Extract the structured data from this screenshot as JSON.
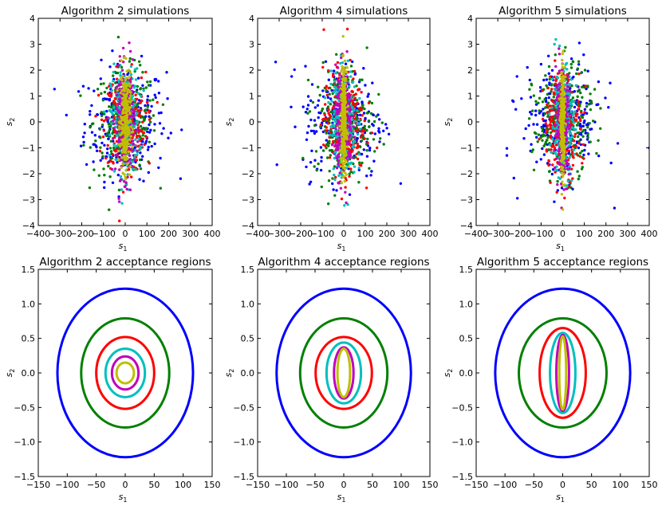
{
  "chart_data": [
    {
      "type": "scatter",
      "title": "Algorithm 2 simulations",
      "xlabel": "s",
      "xlabel_sub": "1",
      "ylabel": "s",
      "ylabel_sub": "2",
      "xlim": [
        -400,
        400
      ],
      "ylim": [
        -4,
        4
      ],
      "xticks": [
        "−400",
        "−300",
        "−200",
        "−100",
        "0",
        "100",
        "200",
        "300",
        "400"
      ],
      "yticks": [
        "−4",
        "−3",
        "−2",
        "−1",
        "0",
        "1",
        "2",
        "3",
        "4"
      ],
      "grid": false,
      "series": [
        {
          "color": "#0000ff",
          "sd_x": 110,
          "sd_y": 1.1
        },
        {
          "color": "#008000",
          "sd_x": 85,
          "sd_y": 1.0
        },
        {
          "color": "#ff0000",
          "sd_x": 55,
          "sd_y": 0.95
        },
        {
          "color": "#00bfbf",
          "sd_x": 38,
          "sd_y": 1.0
        },
        {
          "color": "#bf00bf",
          "sd_x": 25,
          "sd_y": 1.05
        },
        {
          "color": "#bfbf00",
          "sd_x": 14,
          "sd_y": 0.95
        }
      ]
    },
    {
      "type": "scatter",
      "title": "Algorithm 4 simulations",
      "xlabel": "s",
      "xlabel_sub": "1",
      "ylabel": "s",
      "ylabel_sub": "2",
      "xlim": [
        -400,
        400
      ],
      "ylim": [
        -4,
        4
      ],
      "xticks": [
        "−400",
        "−300",
        "−200",
        "−100",
        "0",
        "100",
        "200",
        "300",
        "400"
      ],
      "yticks": [
        "−4",
        "−3",
        "−2",
        "−1",
        "0",
        "1",
        "2",
        "3",
        "4"
      ],
      "grid": false,
      "series": [
        {
          "color": "#0000ff",
          "sd_x": 110,
          "sd_y": 1.1
        },
        {
          "color": "#008000",
          "sd_x": 80,
          "sd_y": 1.05
        },
        {
          "color": "#ff0000",
          "sd_x": 55,
          "sd_y": 1.0
        },
        {
          "color": "#00bfbf",
          "sd_x": 35,
          "sd_y": 1.05
        },
        {
          "color": "#bf00bf",
          "sd_x": 22,
          "sd_y": 1.0
        },
        {
          "color": "#bfbf00",
          "sd_x": 8,
          "sd_y": 1.0
        }
      ]
    },
    {
      "type": "scatter",
      "title": "Algorithm 5 simulations",
      "xlabel": "s",
      "xlabel_sub": "1",
      "ylabel": "s",
      "ylabel_sub": "2",
      "xlim": [
        -400,
        400
      ],
      "ylim": [
        -4,
        4
      ],
      "xticks": [
        "−400",
        "−300",
        "−200",
        "−100",
        "0",
        "100",
        "200",
        "300",
        "400"
      ],
      "yticks": [
        "−4",
        "−3",
        "−2",
        "−1",
        "0",
        "1",
        "2",
        "3",
        "4"
      ],
      "grid": false,
      "series": [
        {
          "color": "#0000ff",
          "sd_x": 110,
          "sd_y": 1.1
        },
        {
          "color": "#008000",
          "sd_x": 80,
          "sd_y": 1.05
        },
        {
          "color": "#ff0000",
          "sd_x": 50,
          "sd_y": 1.0
        },
        {
          "color": "#00bfbf",
          "sd_x": 30,
          "sd_y": 1.05
        },
        {
          "color": "#bf00bf",
          "sd_x": 18,
          "sd_y": 1.0
        },
        {
          "color": "#bfbf00",
          "sd_x": 6,
          "sd_y": 1.0
        }
      ]
    },
    {
      "type": "line",
      "title": "Algorithm 2 acceptance regions",
      "xlabel": "s",
      "xlabel_sub": "1",
      "ylabel": "s",
      "ylabel_sub": "2",
      "xlim": [
        -150,
        150
      ],
      "ylim": [
        -1.5,
        1.5
      ],
      "xticks": [
        "−150",
        "−100",
        "−50",
        "0",
        "50",
        "100",
        "150"
      ],
      "yticks": [
        "−1.5",
        "−1.0",
        "−0.5",
        "0.0",
        "0.5",
        "1.0",
        "1.5"
      ],
      "grid": false,
      "ellipses": [
        {
          "color": "#0000ff",
          "rx": 117,
          "ry": 1.22
        },
        {
          "color": "#008000",
          "rx": 76,
          "ry": 0.79
        },
        {
          "color": "#ff0000",
          "rx": 50,
          "ry": 0.52
        },
        {
          "color": "#00bfbf",
          "rx": 34,
          "ry": 0.35
        },
        {
          "color": "#bf00bf",
          "rx": 23,
          "ry": 0.24
        },
        {
          "color": "#bfbf00",
          "rx": 15,
          "ry": 0.15
        }
      ]
    },
    {
      "type": "line",
      "title": "Algorithm 4 acceptance regions",
      "xlabel": "s",
      "xlabel_sub": "1",
      "ylabel": "s",
      "ylabel_sub": "2",
      "xlim": [
        -150,
        150
      ],
      "ylim": [
        -1.5,
        1.5
      ],
      "xticks": [
        "−150",
        "−100",
        "−50",
        "0",
        "50",
        "100",
        "150"
      ],
      "yticks": [
        "−1.5",
        "−1.0",
        "−0.5",
        "0.0",
        "0.5",
        "1.0",
        "1.5"
      ],
      "grid": false,
      "ellipses": [
        {
          "color": "#0000ff",
          "rx": 117,
          "ry": 1.22
        },
        {
          "color": "#008000",
          "rx": 76,
          "ry": 0.79
        },
        {
          "color": "#ff0000",
          "rx": 49,
          "ry": 0.52
        },
        {
          "color": "#00bfbf",
          "rx": 30,
          "ry": 0.44
        },
        {
          "color": "#bf00bf",
          "rx": 17,
          "ry": 0.37
        },
        {
          "color": "#bfbf00",
          "rx": 11,
          "ry": 0.35
        }
      ]
    },
    {
      "type": "line",
      "title": "Algorithm 5 acceptance regions",
      "xlabel": "s",
      "xlabel_sub": "1",
      "ylabel": "s",
      "ylabel_sub": "2",
      "xlim": [
        -150,
        150
      ],
      "ylim": [
        -1.5,
        1.5
      ],
      "xticks": [
        "−150",
        "−100",
        "−50",
        "0",
        "50",
        "100",
        "150"
      ],
      "yticks": [
        "−1.5",
        "−1.0",
        "−0.5",
        "0.0",
        "0.5",
        "1.0",
        "1.5"
      ],
      "grid": false,
      "ellipses": [
        {
          "color": "#0000ff",
          "rx": 117,
          "ry": 1.22
        },
        {
          "color": "#008000",
          "rx": 76,
          "ry": 0.79
        },
        {
          "color": "#ff0000",
          "rx": 40,
          "ry": 0.65
        },
        {
          "color": "#00bfbf",
          "rx": 22,
          "ry": 0.58
        },
        {
          "color": "#bf00bf",
          "rx": 11,
          "ry": 0.55
        },
        {
          "color": "#bfbf00",
          "rx": 6,
          "ry": 0.53
        }
      ]
    }
  ]
}
